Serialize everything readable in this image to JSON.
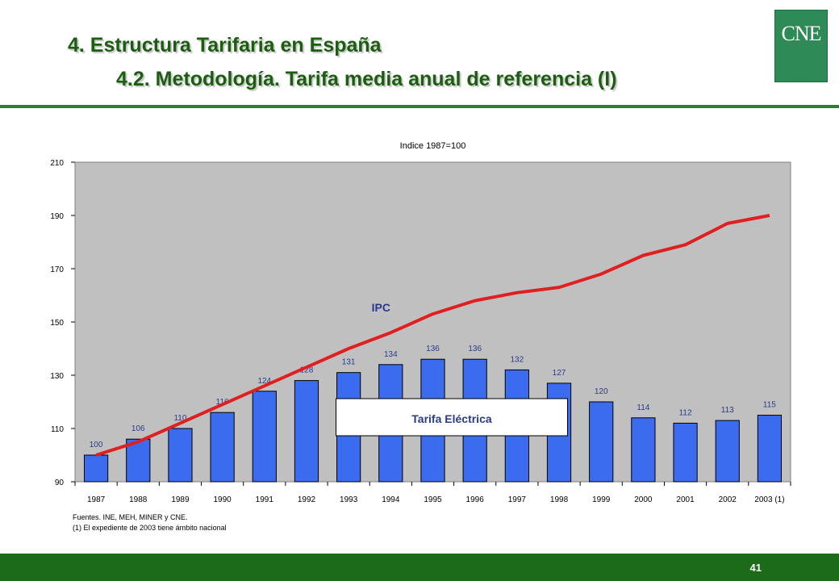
{
  "header": {
    "title_line1": "4. Estructura Tarifaria en España",
    "title_line2": "4.2. Metodología. Tarifa media anual de referencia (I)",
    "logo_text": "CNE",
    "colors": {
      "title": "#1b5e10",
      "rule": "#2e7d32",
      "logo": "#2e8b57"
    }
  },
  "chart_data": {
    "type": "bar",
    "title": "Indice 1987=100",
    "categories": [
      "1987",
      "1988",
      "1989",
      "1990",
      "1991",
      "1992",
      "1993",
      "1994",
      "1995",
      "1996",
      "1997",
      "1998",
      "1999",
      "2000",
      "2001",
      "2002",
      "2003 (1)"
    ],
    "series": [
      {
        "name": "Tarifa Eléctrica",
        "type": "bar",
        "color": "#3b6cf0",
        "values": [
          100,
          106,
          110,
          116,
          124,
          128,
          131,
          134,
          136,
          136,
          132,
          127,
          120,
          114,
          112,
          113,
          115
        ]
      },
      {
        "name": "IPC",
        "type": "line",
        "color": "#e02020",
        "values": [
          100,
          105,
          112,
          119,
          126,
          133,
          140,
          146,
          153,
          158,
          161,
          163,
          168,
          175,
          179,
          187,
          190
        ]
      }
    ],
    "ylim": [
      90,
      210
    ],
    "yticks": [
      90,
      110,
      130,
      150,
      170,
      190,
      210
    ],
    "grid": false,
    "plot_background": "#c0c0c0"
  },
  "notes": {
    "source": "Fuentes. INE, MEH, MINER y CNE.",
    "footnote": "(1) El expediente de 2003 tiene ámbito nacional"
  },
  "footer": {
    "page_number": "41",
    "color": "#1b6b1b"
  }
}
